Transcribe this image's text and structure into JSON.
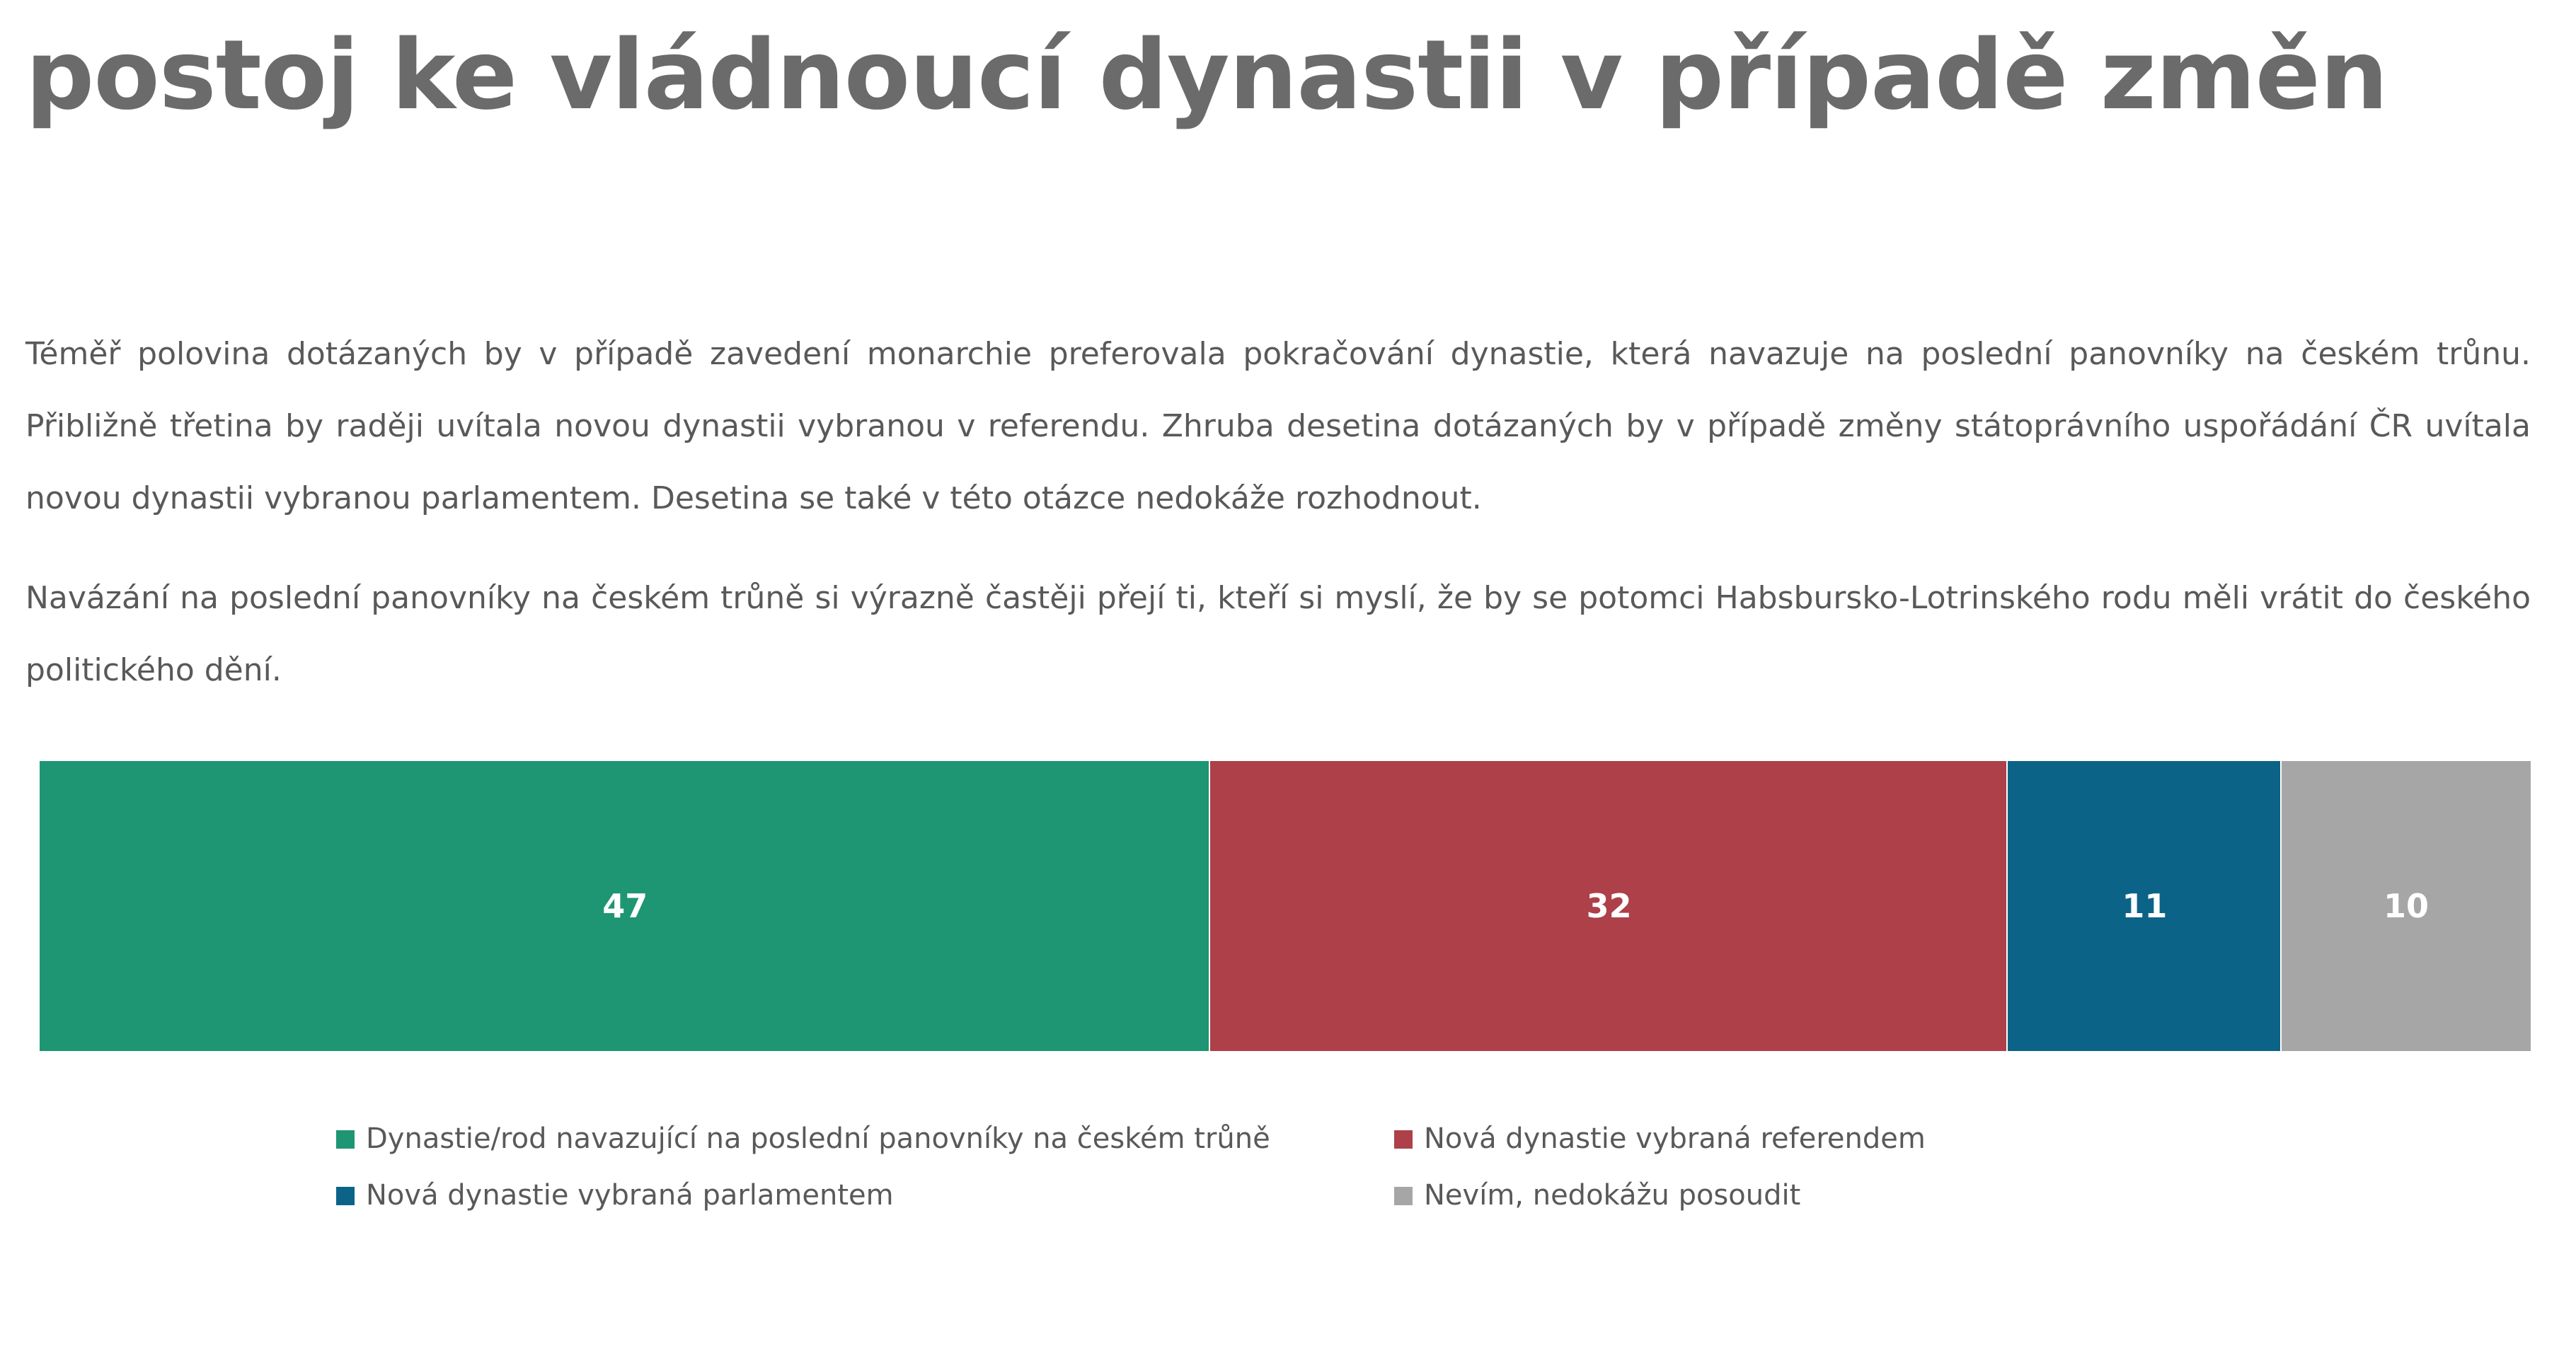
{
  "page": {
    "title": "postoj ke vládnoucí dynastii v případě změn",
    "paragraphs": [
      "Téměř polovina dotázaných by v případě zavedení monarchie preferovala pokračování dynastie, která navazuje na poslední panovníky na českém trůnu. Přibližně třetina by raději uvítala novou dynastii vybranou v referendu. Zhruba desetina dotázaných by v případě změny státoprávního uspořádání ČR uvítala novou dynastii vybranou parlamentem. Desetina se také v této otázce nedokáže rozhodnout.",
      "Navázání na poslední panovníky na českém trůně si výrazně častěji přejí ti, kteří si myslí, že by se potomci Habsbursko-Lotrinského rodu měli vrátit do českého politického dění."
    ]
  },
  "chart_data": {
    "type": "bar",
    "orientation": "horizontal-stacked-100",
    "title": "",
    "xlabel": "",
    "ylabel": "",
    "grid": false,
    "legend_position": "bottom",
    "categories": [
      ""
    ],
    "series": [
      {
        "name": "Dynastie/rod navazující na poslední panovníky na českém trůně",
        "values": [
          47
        ],
        "color": "#1e9573"
      },
      {
        "name": "Nová dynastie vybraná referendem",
        "values": [
          32
        ],
        "color": "#ad4049"
      },
      {
        "name": "Nová dynastie vybraná parlamentem",
        "values": [
          11
        ],
        "color": "#0b6487"
      },
      {
        "name": "Nevím, nedokážu posoudit",
        "values": [
          10
        ],
        "color": "#a6a6a6"
      }
    ]
  }
}
